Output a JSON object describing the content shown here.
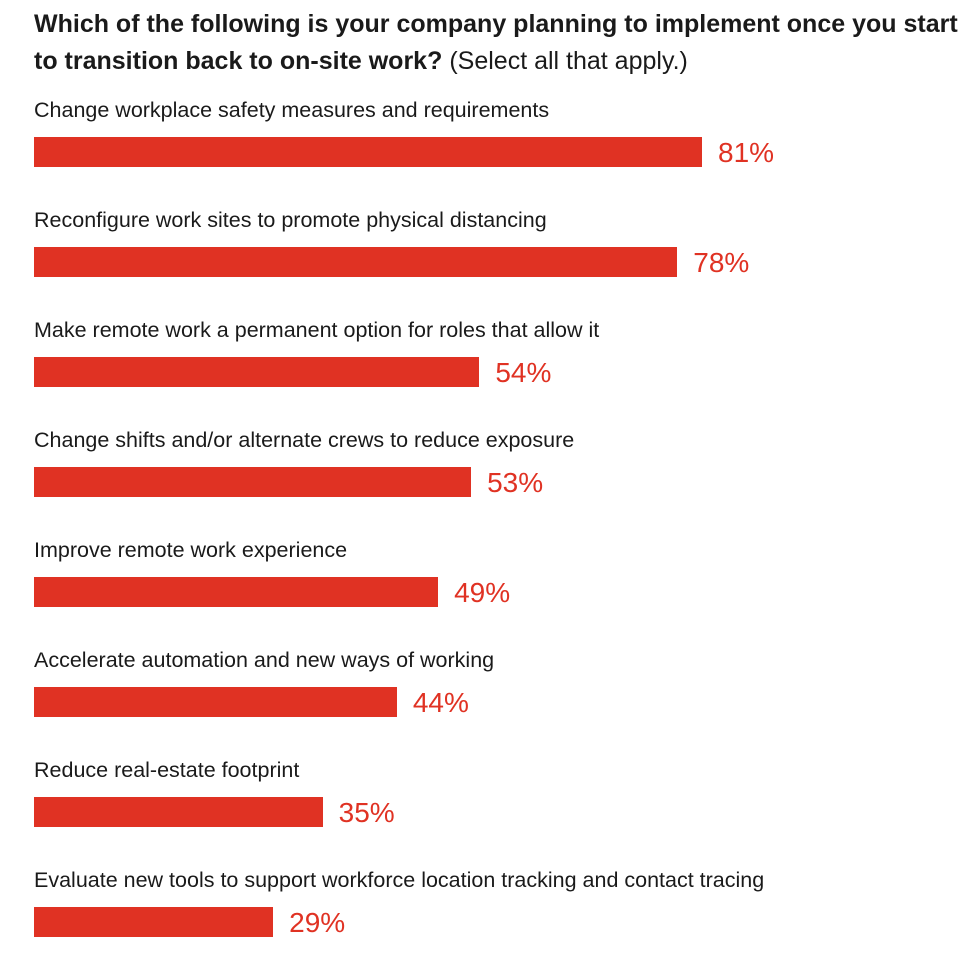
{
  "title_question": "Which of the following is your company planning to implement once you start to transition back to on-site work?",
  "title_note": "(Select all that apply.)",
  "colors": {
    "bar": "#e03223",
    "value_text": "#e03223",
    "label_text": "#1a1a1a"
  },
  "chart_data": {
    "type": "bar",
    "orientation": "horizontal",
    "categories": [
      "Change workplace safety measures and requirements",
      "Reconfigure work sites to promote physical distancing",
      "Make remote work a permanent option for roles that allow it",
      "Change shifts and/or alternate crews to reduce exposure",
      "Improve remote work experience",
      "Accelerate automation and new ways of working",
      "Reduce real-estate footprint",
      "Evaluate new tools to support workforce location tracking and contact tracing"
    ],
    "values": [
      81,
      78,
      54,
      53,
      49,
      44,
      35,
      29
    ],
    "value_labels": [
      "81%",
      "78%",
      "54%",
      "53%",
      "49%",
      "44%",
      "35%",
      "29%"
    ],
    "unit": "%",
    "xlim": [
      0,
      100
    ],
    "grid": false,
    "legend": "none"
  }
}
